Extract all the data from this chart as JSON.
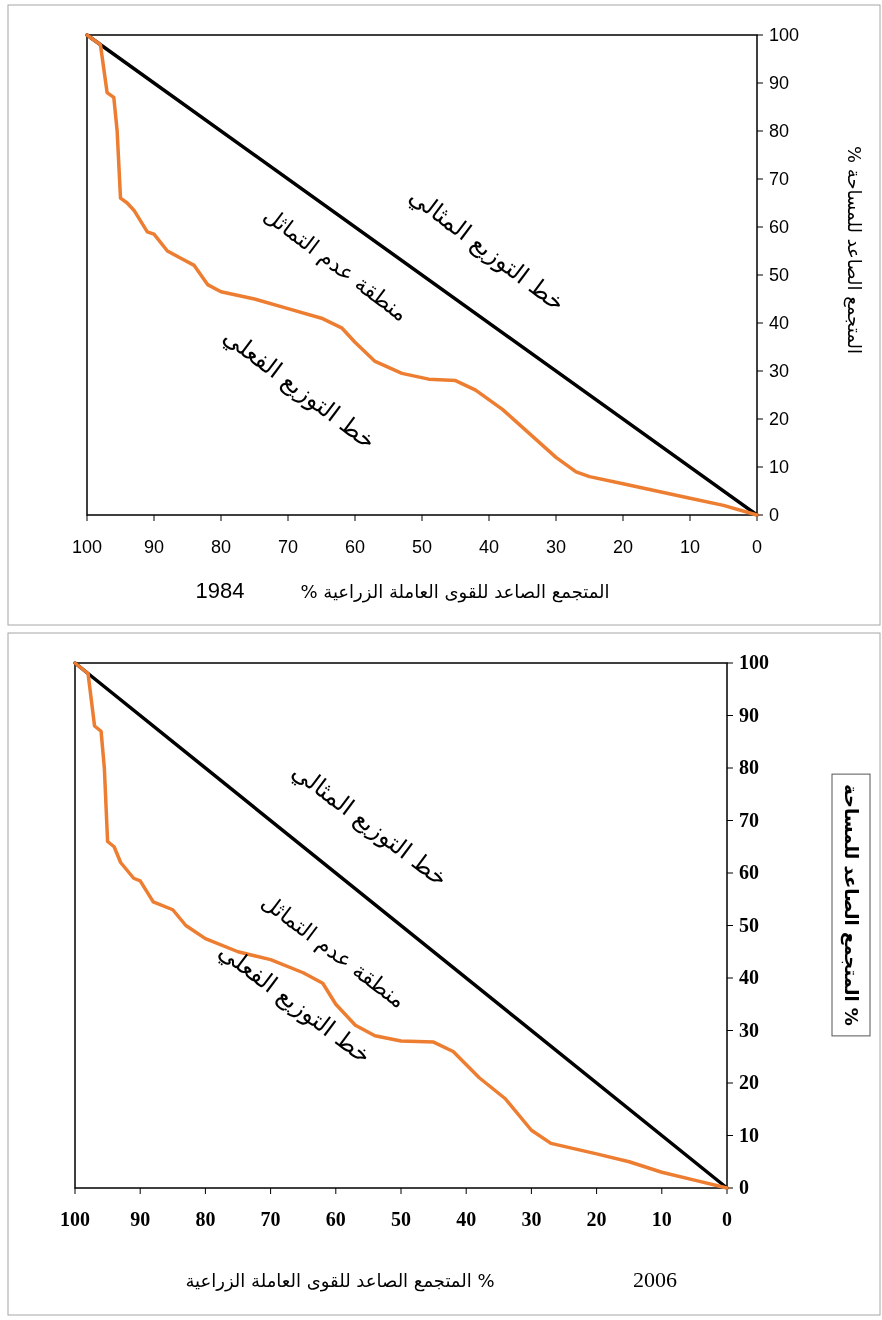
{
  "chart_data": [
    {
      "type": "line",
      "ylabel": "المتجمع الصاعد للمساحة %",
      "xlabel": "المتجمع الصاعد للقوى العاملة الزراعية %",
      "annotations": [
        "1984",
        "منطقة عدم التماثل"
      ],
      "xlim": [
        100,
        0
      ],
      "ylim": [
        0,
        100
      ],
      "xticks": [
        100,
        90,
        80,
        70,
        60,
        50,
        40,
        30,
        20,
        10,
        0
      ],
      "yticks": [
        0,
        10,
        20,
        30,
        40,
        50,
        60,
        70,
        80,
        90,
        100
      ],
      "grid": false,
      "legend": false,
      "marker": "none",
      "line_style": "solid",
      "series": [
        {
          "name": "خط التوزيع المثالي",
          "color": "#000000",
          "x": [
            100,
            0
          ],
          "values": [
            100,
            0
          ]
        },
        {
          "name": "خط التوزيع الفعلي",
          "color": "#ed7d31",
          "x": [
            100,
            98,
            97,
            96,
            95.5,
            95,
            94,
            93,
            91,
            90,
            88,
            86,
            84,
            82,
            80,
            75,
            70,
            65,
            62,
            60,
            57,
            53,
            49,
            45,
            42,
            38,
            34,
            30,
            27,
            25,
            20,
            15,
            10,
            5,
            0
          ],
          "values": [
            100,
            98,
            88,
            87,
            80,
            66,
            65,
            63.5,
            59,
            58.5,
            55,
            53.5,
            52,
            48,
            46.5,
            45,
            43,
            41,
            39,
            36,
            32,
            29.5,
            28.3,
            28,
            26,
            22,
            17,
            12,
            9,
            8,
            6.5,
            5,
            3.5,
            2,
            0
          ]
        }
      ]
    },
    {
      "type": "line",
      "ylabel": "% المتجمع الصاعد للمساحة",
      "xlabel": "% المتجمع الصاعد للقوى العاملة الزراعية",
      "annotations": [
        "2006",
        "منطقة عدم التماثل"
      ],
      "xlim": [
        100,
        0
      ],
      "ylim": [
        0,
        100
      ],
      "xticks": [
        100,
        90,
        80,
        70,
        60,
        50,
        40,
        30,
        20,
        10,
        0
      ],
      "yticks": [
        0,
        10,
        20,
        30,
        40,
        50,
        60,
        70,
        80,
        90,
        100
      ],
      "grid": false,
      "legend": false,
      "marker": "none",
      "line_style": "solid",
      "series": [
        {
          "name": "خط التوزيع المثالي",
          "color": "#000000",
          "x": [
            100,
            0
          ],
          "values": [
            100,
            0
          ]
        },
        {
          "name": "خط التوزيع الفعلي",
          "color": "#ed7d31",
          "x": [
            100,
            98,
            97,
            96,
            95.5,
            95,
            94,
            93,
            91,
            90,
            88,
            85,
            83,
            80,
            75,
            70,
            65,
            62,
            60,
            57,
            54,
            50,
            45,
            42,
            38,
            34,
            30,
            27,
            20,
            15,
            10,
            5,
            0
          ],
          "values": [
            100,
            98,
            88,
            87,
            80,
            66,
            65,
            62,
            59,
            58.5,
            54.5,
            53,
            50,
            47.5,
            45,
            43.5,
            41,
            39,
            35,
            31,
            29,
            28,
            27.8,
            26,
            21,
            17,
            11,
            8.5,
            6.5,
            5,
            3,
            1.5,
            0
          ]
        }
      ]
    }
  ]
}
